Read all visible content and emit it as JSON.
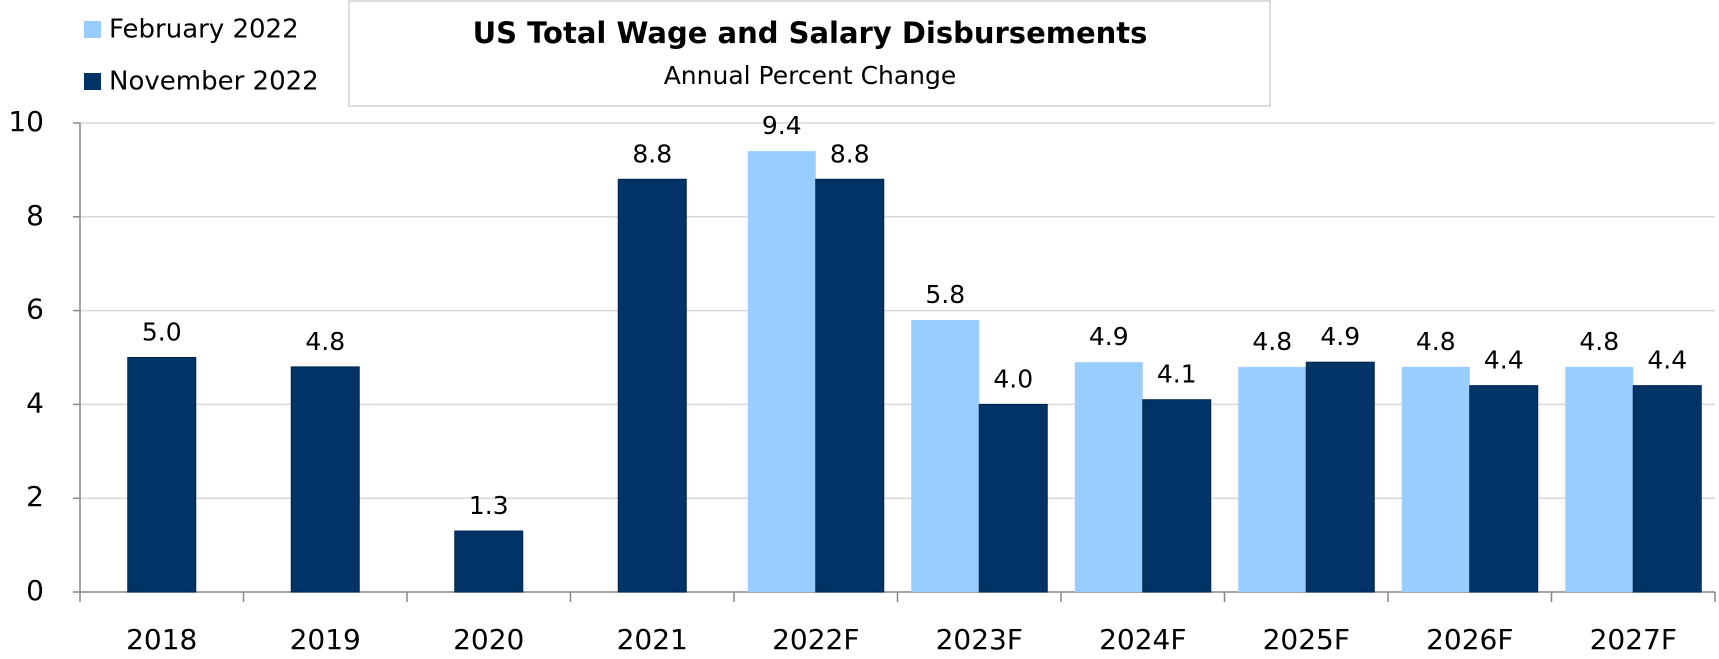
{
  "chart_data": {
    "type": "bar",
    "title": "US Total Wage and Salary Disbursements",
    "subtitle": "Annual Percent Change",
    "categories": [
      "2018",
      "2019",
      "2020",
      "2021",
      "2022F",
      "2023F",
      "2024F",
      "2025F",
      "2026F",
      "2027F"
    ],
    "series": [
      {
        "name": "February 2022",
        "color": "#99ccff",
        "values": [
          null,
          null,
          null,
          null,
          9.4,
          5.8,
          4.9,
          4.8,
          4.8,
          4.8
        ],
        "value_labels": [
          null,
          null,
          null,
          null,
          "9.4",
          "5.8",
          "4.9",
          "4.8",
          "4.8",
          "4.8"
        ]
      },
      {
        "name": "November 2022",
        "color": "#003366",
        "values": [
          5.0,
          4.8,
          1.3,
          8.8,
          8.8,
          4.0,
          4.1,
          4.9,
          4.4,
          4.4
        ],
        "value_labels": [
          "5.0",
          "4.8",
          "1.3",
          "8.8",
          "8.8",
          "4.0",
          "4.1",
          "4.9",
          "4.4",
          "4.4"
        ]
      }
    ],
    "ylim": [
      0,
      10
    ],
    "yticks": [
      0,
      2,
      4,
      6,
      8,
      10
    ],
    "grid": true,
    "legend": "top-left"
  }
}
